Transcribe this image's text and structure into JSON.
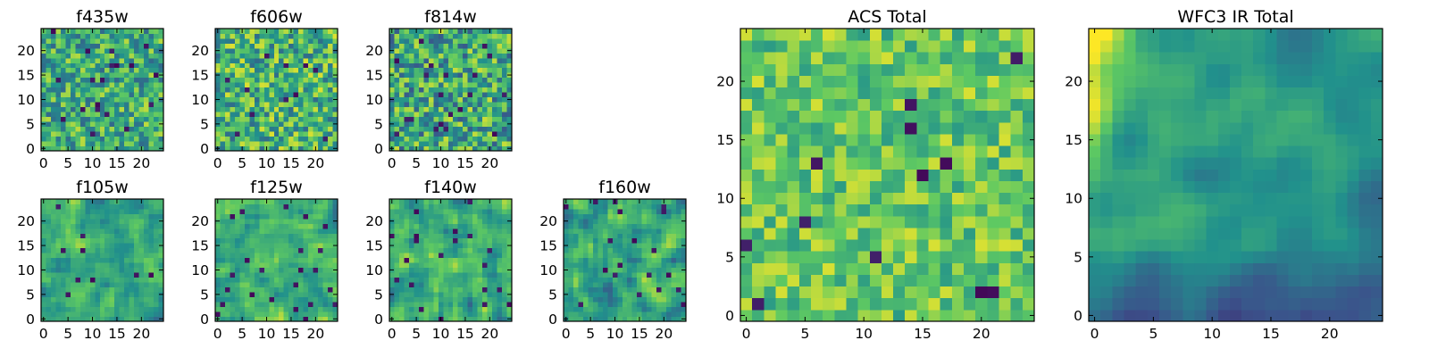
{
  "figure": {
    "colormap": "viridis",
    "colors": [
      "#440154",
      "#3b528b",
      "#21918c",
      "#5ec962",
      "#fde725"
    ]
  },
  "chart_data": [
    {
      "id": "f435w",
      "type": "heatmap",
      "title": "f435w",
      "grid": false,
      "xlim": [
        -0.5,
        24.5
      ],
      "ylim": [
        -0.5,
        24.5
      ],
      "xticks": [
        0,
        5,
        10,
        15,
        20
      ],
      "yticks": [
        0,
        5,
        10,
        15,
        20
      ],
      "xtick_labels": [
        "0",
        "5",
        "10",
        "15",
        "20"
      ],
      "ytick_labels": [
        "0",
        "5",
        "10",
        "15",
        "20"
      ],
      "grid_size": [
        25,
        25
      ],
      "pattern": "noise",
      "seed": 11,
      "mean": 0.62,
      "spread": 0.28
    },
    {
      "id": "f606w",
      "type": "heatmap",
      "title": "f606w",
      "grid": false,
      "xlim": [
        -0.5,
        24.5
      ],
      "ylim": [
        -0.5,
        24.5
      ],
      "xticks": [
        0,
        5,
        10,
        15,
        20
      ],
      "yticks": [
        0,
        5,
        10,
        15,
        20
      ],
      "xtick_labels": [
        "0",
        "5",
        "10",
        "15",
        "20"
      ],
      "ytick_labels": [
        "0",
        "5",
        "10",
        "15",
        "20"
      ],
      "grid_size": [
        25,
        25
      ],
      "pattern": "noise",
      "seed": 23,
      "mean": 0.65,
      "spread": 0.3
    },
    {
      "id": "f814w",
      "type": "heatmap",
      "title": "f814w",
      "grid": false,
      "xlim": [
        -0.5,
        24.5
      ],
      "ylim": [
        -0.5,
        24.5
      ],
      "xticks": [
        0,
        5,
        10,
        15,
        20
      ],
      "yticks": [
        0,
        5,
        10,
        15,
        20
      ],
      "xtick_labels": [
        "0",
        "5",
        "10",
        "15",
        "20"
      ],
      "ytick_labels": [
        "0",
        "5",
        "10",
        "15",
        "20"
      ],
      "grid_size": [
        25,
        25
      ],
      "pattern": "noise",
      "seed": 37,
      "mean": 0.6,
      "spread": 0.32
    },
    {
      "id": "f105w",
      "type": "heatmap",
      "title": "f105w",
      "grid": false,
      "xlim": [
        -0.5,
        24.5
      ],
      "ylim": [
        -0.5,
        24.5
      ],
      "xticks": [
        0,
        5,
        10,
        15,
        20
      ],
      "yticks": [
        0,
        5,
        10,
        15,
        20
      ],
      "xtick_labels": [
        "0",
        "5",
        "10",
        "15",
        "20"
      ],
      "ytick_labels": [
        "0",
        "5",
        "10",
        "15",
        "20"
      ],
      "grid_size": [
        25,
        25
      ],
      "pattern": "smooth",
      "seed": 41,
      "mean": 0.6,
      "spread": 0.26
    },
    {
      "id": "f125w",
      "type": "heatmap",
      "title": "f125w",
      "grid": false,
      "xlim": [
        -0.5,
        24.5
      ],
      "ylim": [
        -0.5,
        24.5
      ],
      "xticks": [
        0,
        5,
        10,
        15,
        20
      ],
      "yticks": [
        0,
        5,
        10,
        15,
        20
      ],
      "xtick_labels": [
        "0",
        "5",
        "10",
        "15",
        "20"
      ],
      "ytick_labels": [
        "0",
        "5",
        "10",
        "15",
        "20"
      ],
      "grid_size": [
        25,
        25
      ],
      "pattern": "smooth",
      "seed": 53,
      "mean": 0.63,
      "spread": 0.27
    },
    {
      "id": "f140w",
      "type": "heatmap",
      "title": "f140w",
      "grid": false,
      "xlim": [
        -0.5,
        24.5
      ],
      "ylim": [
        -0.5,
        24.5
      ],
      "xticks": [
        0,
        5,
        10,
        15,
        20
      ],
      "yticks": [
        0,
        5,
        10,
        15,
        20
      ],
      "xtick_labels": [
        "0",
        "5",
        "10",
        "15",
        "20"
      ],
      "ytick_labels": [
        "0",
        "5",
        "10",
        "15",
        "20"
      ],
      "grid_size": [
        25,
        25
      ],
      "pattern": "smooth",
      "seed": 67,
      "mean": 0.6,
      "spread": 0.28
    },
    {
      "id": "f160w",
      "type": "heatmap",
      "title": "f160w",
      "grid": false,
      "xlim": [
        -0.5,
        24.5
      ],
      "ylim": [
        -0.5,
        24.5
      ],
      "xticks": [
        0,
        5,
        10,
        15,
        20
      ],
      "yticks": [
        0,
        5,
        10,
        15,
        20
      ],
      "xtick_labels": [
        "0",
        "5",
        "10",
        "15",
        "20"
      ],
      "ytick_labels": [
        "0",
        "5",
        "10",
        "15",
        "20"
      ],
      "grid_size": [
        25,
        25
      ],
      "pattern": "smooth",
      "seed": 79,
      "mean": 0.6,
      "spread": 0.28
    },
    {
      "id": "acs-total",
      "type": "heatmap",
      "title": "ACS Total",
      "grid": false,
      "xlim": [
        -0.5,
        24.5
      ],
      "ylim": [
        -0.5,
        24.5
      ],
      "xticks": [
        0,
        5,
        10,
        15,
        20
      ],
      "yticks": [
        0,
        5,
        10,
        15,
        20
      ],
      "xtick_labels": [
        "0",
        "5",
        "10",
        "15",
        "20"
      ],
      "ytick_labels": [
        "0",
        "5",
        "10",
        "15",
        "20"
      ],
      "grid_size": [
        25,
        25
      ],
      "pattern": "noise",
      "seed": 97,
      "mean": 0.74,
      "spread": 0.2
    },
    {
      "id": "wfc3-ir-total",
      "type": "heatmap",
      "title": "WFC3 IR Total",
      "grid": false,
      "xlim": [
        -0.5,
        24.5
      ],
      "ylim": [
        -0.5,
        24.5
      ],
      "xticks": [
        0,
        5,
        10,
        15,
        20
      ],
      "yticks": [
        0,
        5,
        10,
        15,
        20
      ],
      "xtick_labels": [
        "0",
        "5",
        "10",
        "15",
        "20"
      ],
      "ytick_labels": [
        "0",
        "5",
        "10",
        "15",
        "20"
      ],
      "grid_size": [
        25,
        25
      ],
      "pattern": "gradient",
      "seed": 113,
      "mean": 0.5,
      "spread": 0.2
    }
  ]
}
